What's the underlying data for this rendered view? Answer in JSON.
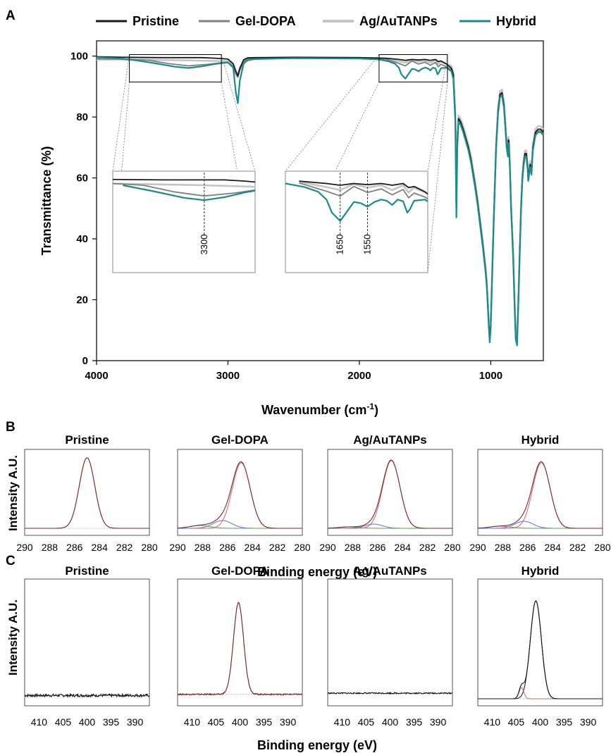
{
  "panel_labels": {
    "a": "A",
    "b": "B",
    "c": "C"
  },
  "colors": {
    "pristine": "#1a1a1a",
    "gel_dopa": "#7f7f7f",
    "ag_au": "#c4c4c4",
    "hybrid": "#1a8c8c",
    "fit_red": "#e06060",
    "fit_blue": "#6a6ae0",
    "fit_green": "#5aa05a"
  },
  "chart_data": [
    {
      "id": "A",
      "type": "line",
      "xlabel": "Wavenumber (cm-1)",
      "xlabel_main": "Wavenumber (cm",
      "xlabel_sup": "-1",
      "xlabel_close": ")",
      "ylabel": "Transmittance (%)",
      "xlim": [
        4000,
        600
      ],
      "ylim": [
        0,
        105
      ],
      "x_ticks": [
        4000,
        3000,
        2000,
        1000
      ],
      "x_tick_labels": [
        "4000",
        "3000",
        "2000",
        "1000"
      ],
      "y_ticks": [
        0,
        20,
        40,
        60,
        80,
        100
      ],
      "y_tick_labels": [
        "0",
        "20",
        "40",
        "60",
        "80",
        "100"
      ],
      "legend": [
        "Pristine",
        "Gel-DOPA",
        "Ag/AuTANPs",
        "Hybrid"
      ],
      "legend_position": "top",
      "insets": [
        {
          "x_range": [
            3750,
            3050
          ],
          "y_range": [
            91.5,
            100.5
          ],
          "annotation": "3300",
          "marker_x": 3300
        },
        {
          "x_range": [
            1850,
            1330
          ],
          "y_range": [
            91.5,
            100.5
          ],
          "annotations": [
            "1650",
            "1550"
          ],
          "marker_x": [
            1650,
            1550
          ]
        }
      ],
      "series": [
        {
          "name": "Pristine",
          "x": [
            4000,
            3800,
            3500,
            3200,
            3100,
            3000,
            2960,
            2940,
            2925,
            2910,
            2880,
            2850,
            2800,
            2500,
            2000,
            1800,
            1700,
            1650,
            1600,
            1550,
            1500,
            1460,
            1420,
            1400,
            1380,
            1340,
            1300,
            1285,
            1270,
            1262,
            1255,
            1245,
            1230,
            1210,
            1190,
            1170,
            1150,
            1120,
            1100,
            1080,
            1060,
            1040,
            1030,
            1015,
            1008,
            1000,
            990,
            975,
            960,
            945,
            930,
            915,
            900,
            890,
            880,
            870,
            866,
            862,
            855,
            845,
            830,
            818,
            810,
            800,
            796,
            790,
            780,
            770,
            760,
            750,
            740,
            730,
            720,
            715,
            705,
            700,
            690,
            680,
            660,
            640,
            620,
            600
          ],
          "y": [
            99.8,
            99.6,
            99.5,
            99.5,
            99.3,
            99.0,
            97.5,
            95.0,
            93.5,
            96.0,
            98.8,
            99.4,
            99.5,
            99.6,
            99.5,
            99.3,
            98.9,
            98.6,
            98.9,
            98.7,
            98.9,
            98.6,
            98.9,
            98.2,
            98.4,
            97.5,
            96.0,
            94.0,
            80.0,
            50.0,
            72.0,
            79.5,
            78.5,
            76.0,
            73.0,
            70.0,
            66.0,
            58.0,
            52.0,
            45.0,
            38.0,
            30.0,
            25.0,
            12.0,
            7.0,
            12.0,
            28.0,
            50.0,
            70.0,
            82.0,
            87.5,
            88.0,
            84.0,
            78.0,
            71.0,
            68.0,
            72.5,
            72.0,
            64.0,
            50.0,
            35.0,
            18.0,
            8.0,
            6.0,
            12.0,
            20.0,
            35.0,
            50.0,
            60.0,
            65.0,
            68.0,
            68.0,
            64.0,
            60.0,
            63.0,
            64.5,
            62.0,
            70.0,
            75.0,
            76.0,
            76.0,
            75.0
          ]
        },
        {
          "name": "Gel-DOPA",
          "x": [
            4000,
            3800,
            3600,
            3450,
            3300,
            3150,
            3050,
            3000,
            2960,
            2940,
            2925,
            2910,
            2880,
            2850,
            2800,
            2500,
            2000,
            1800,
            1700,
            1650,
            1600,
            1550,
            1500,
            1460,
            1420,
            1400,
            1380,
            1340,
            1300,
            1285,
            1270,
            1262,
            1255,
            1245,
            1230,
            1210,
            1190,
            1170,
            1150,
            1120,
            1100,
            1080,
            1060,
            1040,
            1030,
            1015,
            1008,
            1000,
            990,
            975,
            960,
            945,
            930,
            915,
            900,
            890,
            880,
            870,
            866,
            862,
            855,
            845,
            830,
            818,
            810,
            800,
            796,
            790,
            780,
            770,
            760,
            750,
            740,
            730,
            720,
            715,
            705,
            700,
            690,
            680,
            660,
            640,
            620,
            600
          ],
          "y": [
            99.1,
            99.0,
            98.6,
            97.5,
            96.8,
            97.3,
            97.8,
            98.0,
            96.6,
            94.0,
            93.0,
            95.2,
            98.2,
            99.0,
            99.2,
            99.4,
            99.3,
            99.0,
            97.6,
            96.8,
            98.4,
            97.4,
            98.0,
            97.0,
            97.9,
            96.5,
            97.3,
            96.6,
            95.5,
            93.5,
            79.5,
            48.5,
            71.5,
            79.0,
            78.0,
            75.5,
            72.5,
            69.5,
            65.5,
            57.5,
            51.5,
            44.5,
            37.5,
            29.5,
            24.5,
            11.5,
            6.5,
            11.5,
            27.5,
            49.5,
            69.5,
            81.5,
            87.0,
            87.5,
            83.5,
            77.5,
            70.5,
            67.5,
            72.0,
            71.5,
            63.5,
            49.5,
            34.5,
            17.5,
            7.5,
            5.5,
            11.5,
            19.5,
            34.5,
            49.5,
            59.5,
            64.5,
            67.5,
            67.5,
            63.5,
            59.5,
            62.5,
            64.0,
            61.5,
            69.5,
            74.5,
            75.5,
            75.5,
            74.5
          ]
        },
        {
          "name": "Ag/AuTANPs",
          "x": [
            4000,
            3800,
            3600,
            3300,
            3000,
            2960,
            2940,
            2925,
            2910,
            2880,
            2850,
            2800,
            2500,
            2000,
            1800,
            1700,
            1650,
            1600,
            1550,
            1500,
            1460,
            1420,
            1400,
            1380,
            1340,
            1300,
            1285,
            1270,
            1262,
            1255,
            1245,
            1230,
            1210,
            1190,
            1170,
            1150,
            1120,
            1100,
            1080,
            1060,
            1040,
            1030,
            1015,
            1008,
            1000,
            990,
            975,
            960,
            945,
            930,
            915,
            900,
            890,
            880,
            870,
            866,
            862,
            855,
            845,
            830,
            818,
            810,
            800,
            796,
            790,
            780,
            770,
            760,
            750,
            740,
            730,
            720,
            715,
            705,
            700,
            690,
            680,
            660,
            640,
            620,
            600
          ],
          "y": [
            98.8,
            98.9,
            98.8,
            98.6,
            98.3,
            97.0,
            95.0,
            94.0,
            96.0,
            98.4,
            99.0,
            99.3,
            99.5,
            99.4,
            99.2,
            98.3,
            97.8,
            98.8,
            98.2,
            98.6,
            97.8,
            98.6,
            97.4,
            98.2,
            97.4,
            96.8,
            94.5,
            81.0,
            51.5,
            73.0,
            80.5,
            79.5,
            77.0,
            74.0,
            71.0,
            67.0,
            59.0,
            53.0,
            46.0,
            39.0,
            31.0,
            26.0,
            13.0,
            8.0,
            13.0,
            29.0,
            51.0,
            71.0,
            83.0,
            88.5,
            89.0,
            85.0,
            79.0,
            72.0,
            69.0,
            73.5,
            73.0,
            65.0,
            51.0,
            36.0,
            19.0,
            9.0,
            7.0,
            13.0,
            21.0,
            36.0,
            51.0,
            61.0,
            66.0,
            69.0,
            69.0,
            65.0,
            61.0,
            64.0,
            65.5,
            63.0,
            71.0,
            76.0,
            77.0,
            77.0,
            76.0
          ]
        },
        {
          "name": "Hybrid",
          "x": [
            4000,
            3850,
            3700,
            3550,
            3400,
            3300,
            3200,
            3100,
            3050,
            3000,
            2960,
            2940,
            2925,
            2910,
            2880,
            2850,
            2800,
            2500,
            2000,
            1850,
            1780,
            1730,
            1700,
            1680,
            1650,
            1620,
            1600,
            1575,
            1550,
            1525,
            1500,
            1480,
            1460,
            1440,
            1420,
            1405,
            1395,
            1380,
            1340,
            1300,
            1285,
            1270,
            1262,
            1255,
            1245,
            1230,
            1210,
            1190,
            1170,
            1150,
            1120,
            1100,
            1080,
            1060,
            1040,
            1030,
            1015,
            1008,
            1000,
            990,
            975,
            960,
            945,
            930,
            915,
            900,
            890,
            880,
            870,
            866,
            862,
            855,
            845,
            830,
            818,
            810,
            800,
            796,
            790,
            780,
            770,
            760,
            750,
            740,
            730,
            720,
            715,
            705,
            700,
            690,
            680,
            660,
            640,
            620,
            600
          ],
          "y": [
            99.6,
            99.3,
            98.6,
            97.6,
            96.5,
            96.1,
            96.6,
            97.4,
            97.7,
            97.9,
            96.2,
            88.0,
            84.5,
            92.0,
            97.6,
            98.6,
            99.0,
            99.3,
            99.2,
            98.9,
            98.3,
            97.5,
            96.2,
            94.0,
            92.6,
            94.5,
            95.8,
            95.6,
            95.0,
            95.8,
            96.2,
            96.0,
            95.3,
            96.2,
            95.9,
            94.0,
            94.6,
            96.0,
            96.2,
            95.0,
            92.5,
            78.5,
            47.0,
            70.0,
            78.5,
            77.5,
            75.0,
            72.0,
            69.0,
            65.0,
            57.0,
            51.0,
            44.0,
            37.0,
            29.0,
            24.0,
            11.0,
            6.0,
            11.0,
            27.0,
            49.0,
            69.0,
            81.0,
            86.5,
            87.0,
            83.0,
            77.0,
            70.0,
            67.0,
            71.5,
            71.0,
            63.0,
            49.0,
            34.0,
            17.0,
            7.0,
            5.0,
            11.0,
            19.0,
            34.0,
            49.0,
            59.0,
            64.0,
            67.0,
            67.0,
            63.0,
            59.0,
            62.0,
            63.5,
            61.0,
            69.0,
            74.0,
            75.0,
            75.0,
            74.0
          ]
        }
      ]
    },
    {
      "id": "B",
      "type": "line",
      "xlabel": "Binding energy (eV)",
      "ylabel": "Intensity A.U.",
      "xlim": [
        290,
        280
      ],
      "x_ticks": [
        290,
        288,
        286,
        284,
        282,
        280
      ],
      "x_tick_labels": [
        "290",
        "288",
        "286",
        "284",
        "282",
        "280"
      ],
      "subplots": [
        {
          "title": "Pristine",
          "baseline": 0.0,
          "components": [
            {
              "role": "envelope",
              "center": 285.0,
              "sigma": 0.62,
              "amp": 1.0,
              "color": "fit_red"
            }
          ]
        },
        {
          "title": "Gel-DOPA",
          "baseline": 0.0,
          "components": [
            {
              "role": "main",
              "center": 284.9,
              "sigma": 0.72,
              "amp": 0.93,
              "color": "fit_red"
            },
            {
              "role": "shoulder",
              "center": 286.4,
              "sigma": 0.75,
              "amp": 0.11,
              "color": "fit_blue"
            },
            {
              "role": "minor",
              "center": 288.2,
              "sigma": 0.8,
              "amp": 0.04,
              "color": "fit_green"
            }
          ]
        },
        {
          "title": "Ag/AuTANPs",
          "baseline": 0.0,
          "components": [
            {
              "role": "main",
              "center": 284.9,
              "sigma": 0.7,
              "amp": 0.96,
              "color": "fit_red"
            },
            {
              "role": "shoulder",
              "center": 286.3,
              "sigma": 0.7,
              "amp": 0.06,
              "color": "fit_blue"
            },
            {
              "role": "minor",
              "center": 288.3,
              "sigma": 0.8,
              "amp": 0.02,
              "color": "fit_green"
            }
          ]
        },
        {
          "title": "Hybrid",
          "baseline": 0.0,
          "components": [
            {
              "role": "main",
              "center": 284.9,
              "sigma": 0.7,
              "amp": 0.93,
              "color": "fit_red"
            },
            {
              "role": "shoulder",
              "center": 286.3,
              "sigma": 0.72,
              "amp": 0.1,
              "color": "fit_blue"
            },
            {
              "role": "minor",
              "center": 288.2,
              "sigma": 0.8,
              "amp": 0.03,
              "color": "fit_green"
            }
          ]
        }
      ]
    },
    {
      "id": "C",
      "type": "line",
      "xlabel": "Binding energy (eV)",
      "ylabel": "Intensity A.U.",
      "xlim": [
        413,
        387
      ],
      "x_ticks": [
        410,
        405,
        400,
        395,
        390
      ],
      "x_tick_labels": [
        "410",
        "405",
        "400",
        "395",
        "390"
      ],
      "subplots": [
        {
          "title": "Pristine",
          "baseline": 0.03,
          "noise": 0.012,
          "components": []
        },
        {
          "title": "Gel-DOPA",
          "baseline": 0.04,
          "noise": 0.006,
          "components": [
            {
              "role": "main",
              "center": 400.3,
              "sigma": 1.05,
              "amp": 0.82,
              "color": "fit_red"
            }
          ]
        },
        {
          "title": "Ag/AuTANPs",
          "baseline": 0.05,
          "noise": 0.006,
          "components": []
        },
        {
          "title": "Hybrid",
          "baseline": 0.0,
          "noise": 0.0,
          "components": [
            {
              "role": "main",
              "center": 400.9,
              "sigma": 1.15,
              "amp": 0.88,
              "color": "fit_black"
            },
            {
              "role": "minor",
              "center": 403.9,
              "sigma": 0.5,
              "amp": 0.1,
              "color": "fit_red"
            }
          ]
        }
      ]
    }
  ]
}
